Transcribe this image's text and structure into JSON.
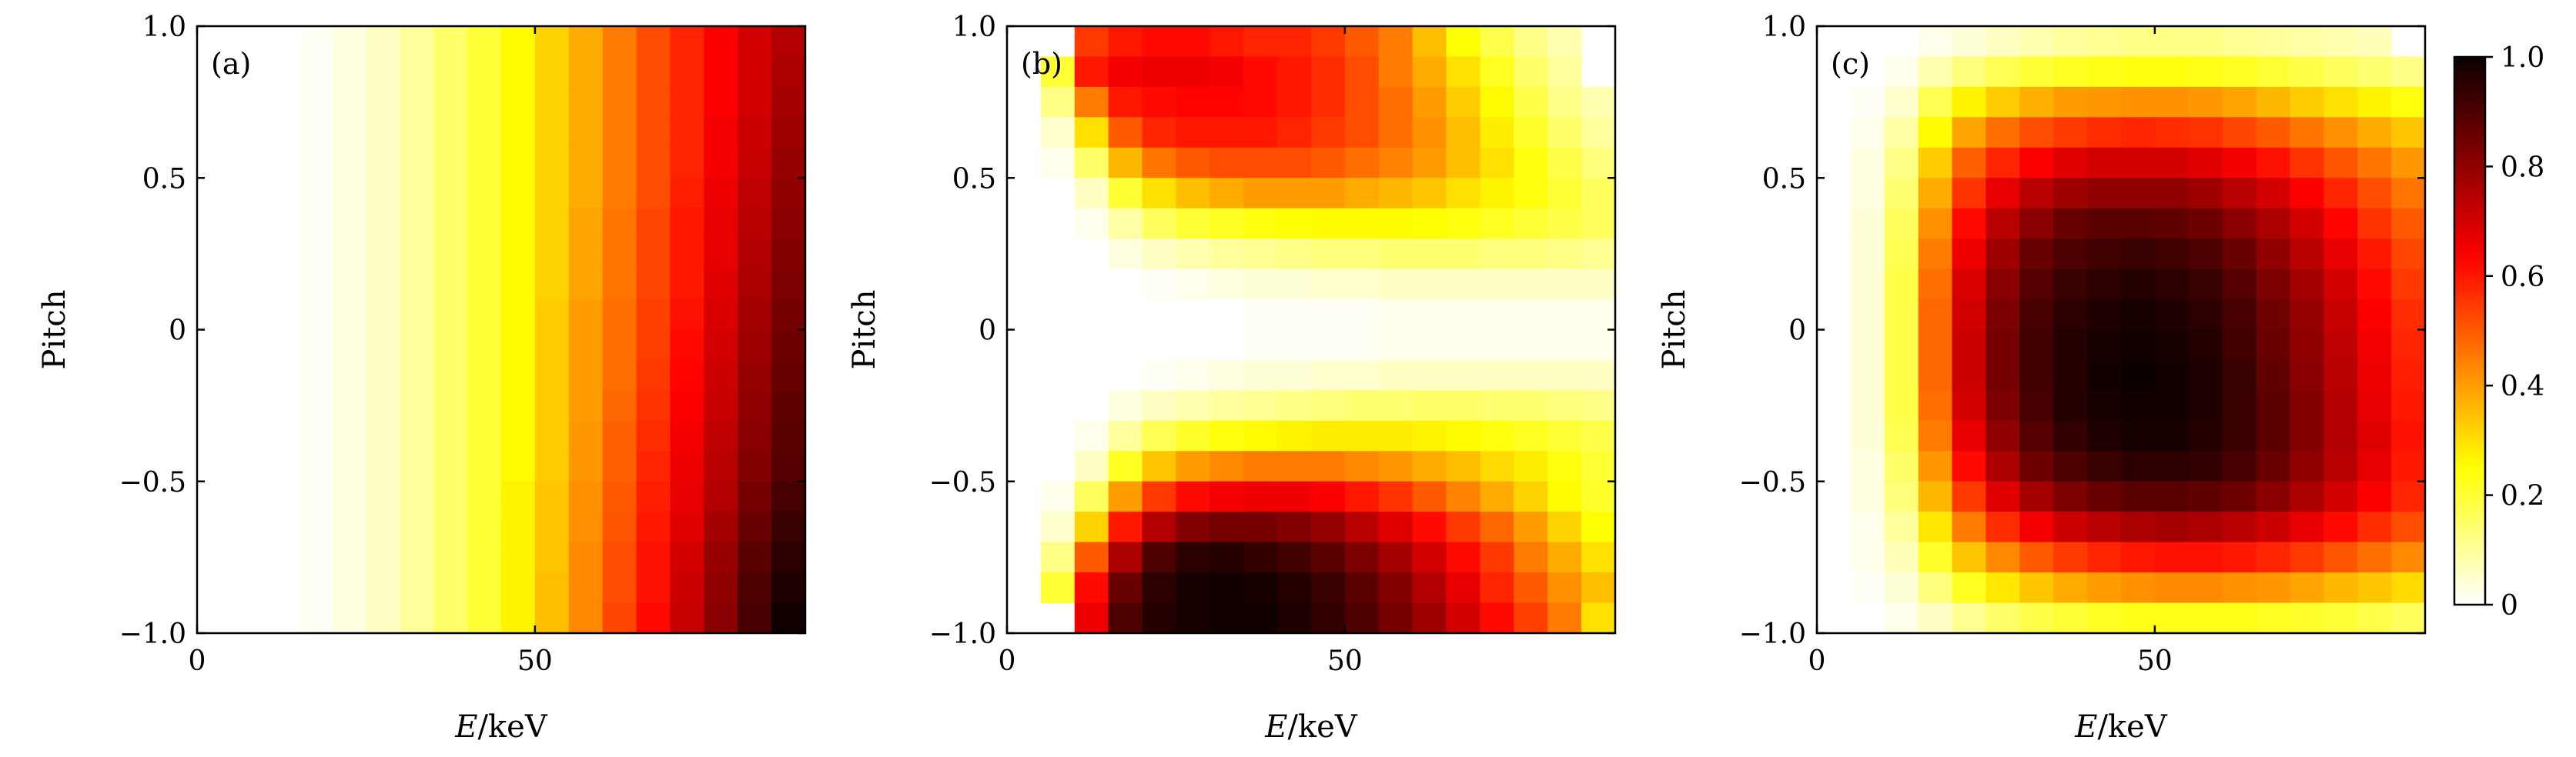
{
  "chart_data": [
    {
      "type": "heatmap",
      "panel_label": "(a)",
      "xlabel": "E/keV",
      "ylabel": "Pitch",
      "xlim": [
        0,
        90
      ],
      "ylim": [
        -1.0,
        1.0
      ],
      "xticks": [
        "0",
        "50"
      ],
      "yticks": [
        "1.0",
        "0.5",
        "0",
        "−0.5",
        "−1.0"
      ],
      "x_bin_width_keV": 5,
      "pitch_bins": 20,
      "description_of_values": "intensity rises with energy, independent of pitch",
      "rows": [
        [
          0,
          0,
          0,
          0.01,
          0.03,
          0.06,
          0.1,
          0.15,
          0.2,
          0.26,
          0.32,
          0.38,
          0.45,
          0.52,
          0.58,
          0.64,
          0.7,
          0.75
        ],
        [
          0,
          0,
          0,
          0.01,
          0.03,
          0.06,
          0.1,
          0.15,
          0.2,
          0.26,
          0.32,
          0.38,
          0.45,
          0.52,
          0.58,
          0.64,
          0.7,
          0.76
        ],
        [
          0,
          0,
          0,
          0.01,
          0.03,
          0.06,
          0.1,
          0.15,
          0.2,
          0.26,
          0.32,
          0.38,
          0.45,
          0.52,
          0.58,
          0.64,
          0.7,
          0.77
        ],
        [
          0,
          0,
          0,
          0.01,
          0.03,
          0.06,
          0.1,
          0.15,
          0.2,
          0.26,
          0.32,
          0.38,
          0.45,
          0.52,
          0.58,
          0.65,
          0.71,
          0.78
        ],
        [
          0,
          0,
          0,
          0.01,
          0.03,
          0.06,
          0.1,
          0.15,
          0.2,
          0.26,
          0.32,
          0.38,
          0.45,
          0.52,
          0.58,
          0.65,
          0.72,
          0.79
        ],
        [
          0,
          0,
          0,
          0.01,
          0.03,
          0.06,
          0.1,
          0.15,
          0.2,
          0.26,
          0.32,
          0.38,
          0.45,
          0.52,
          0.59,
          0.66,
          0.73,
          0.8
        ],
        [
          0,
          0,
          0,
          0.01,
          0.03,
          0.06,
          0.1,
          0.15,
          0.2,
          0.26,
          0.32,
          0.39,
          0.46,
          0.53,
          0.6,
          0.67,
          0.74,
          0.81
        ],
        [
          0,
          0,
          0,
          0.01,
          0.03,
          0.06,
          0.1,
          0.15,
          0.2,
          0.26,
          0.32,
          0.39,
          0.46,
          0.53,
          0.6,
          0.67,
          0.75,
          0.82
        ],
        [
          0,
          0,
          0,
          0.01,
          0.03,
          0.06,
          0.1,
          0.15,
          0.2,
          0.26,
          0.32,
          0.39,
          0.46,
          0.53,
          0.6,
          0.68,
          0.76,
          0.83
        ],
        [
          0,
          0,
          0,
          0.01,
          0.03,
          0.06,
          0.1,
          0.15,
          0.2,
          0.26,
          0.33,
          0.4,
          0.47,
          0.54,
          0.61,
          0.69,
          0.77,
          0.84
        ],
        [
          0,
          0,
          0,
          0.01,
          0.03,
          0.06,
          0.1,
          0.15,
          0.2,
          0.26,
          0.33,
          0.4,
          0.47,
          0.54,
          0.62,
          0.7,
          0.78,
          0.85
        ],
        [
          0,
          0,
          0,
          0.01,
          0.03,
          0.06,
          0.1,
          0.15,
          0.2,
          0.26,
          0.33,
          0.4,
          0.47,
          0.55,
          0.63,
          0.71,
          0.79,
          0.86
        ],
        [
          0,
          0,
          0,
          0.01,
          0.03,
          0.06,
          0.1,
          0.15,
          0.2,
          0.26,
          0.33,
          0.4,
          0.48,
          0.56,
          0.64,
          0.72,
          0.8,
          0.87
        ],
        [
          0,
          0,
          0,
          0.01,
          0.03,
          0.06,
          0.1,
          0.15,
          0.2,
          0.26,
          0.33,
          0.41,
          0.49,
          0.57,
          0.65,
          0.73,
          0.81,
          0.88
        ],
        [
          0,
          0,
          0,
          0.01,
          0.03,
          0.06,
          0.1,
          0.15,
          0.2,
          0.26,
          0.33,
          0.41,
          0.49,
          0.58,
          0.66,
          0.74,
          0.82,
          0.89
        ],
        [
          0,
          0,
          0,
          0.01,
          0.03,
          0.06,
          0.1,
          0.15,
          0.2,
          0.27,
          0.34,
          0.42,
          0.5,
          0.59,
          0.67,
          0.75,
          0.84,
          0.91
        ],
        [
          0,
          0,
          0,
          0.01,
          0.03,
          0.06,
          0.1,
          0.15,
          0.2,
          0.27,
          0.34,
          0.42,
          0.51,
          0.6,
          0.68,
          0.77,
          0.86,
          0.93
        ],
        [
          0,
          0,
          0,
          0.01,
          0.03,
          0.06,
          0.1,
          0.15,
          0.2,
          0.27,
          0.34,
          0.43,
          0.52,
          0.61,
          0.7,
          0.79,
          0.88,
          0.95
        ],
        [
          0,
          0,
          0,
          0.01,
          0.03,
          0.06,
          0.1,
          0.15,
          0.2,
          0.27,
          0.35,
          0.43,
          0.52,
          0.61,
          0.71,
          0.8,
          0.9,
          0.97
        ],
        [
          0,
          0,
          0,
          0.01,
          0.03,
          0.06,
          0.1,
          0.15,
          0.2,
          0.27,
          0.35,
          0.43,
          0.53,
          0.62,
          0.72,
          0.81,
          0.91,
          0.99
        ]
      ]
    },
    {
      "type": "heatmap",
      "panel_label": "(b)",
      "xlabel": "E/keV",
      "ylabel": "Pitch",
      "xlim": [
        0,
        90
      ],
      "ylim": [
        -1.0,
        1.0
      ],
      "xticks": [
        "0",
        "50"
      ],
      "yticks": [
        "1.0",
        "0.5",
        "0",
        "−0.5",
        "−1.0"
      ],
      "x_bin_width_keV": 5,
      "pitch_bins": 20,
      "description_of_values": "two lobes near pitch +1 and -1, empty near pitch 0",
      "rows": [
        [
          0,
          0,
          0.55,
          0.6,
          0.62,
          0.62,
          0.6,
          0.58,
          0.58,
          0.55,
          0.5,
          0.45,
          0.35,
          0.25,
          0.18,
          0.12,
          0.08,
          0
        ],
        [
          0,
          0.2,
          0.6,
          0.65,
          0.66,
          0.66,
          0.65,
          0.62,
          0.6,
          0.57,
          0.52,
          0.45,
          0.38,
          0.3,
          0.22,
          0.15,
          0.1,
          0
        ],
        [
          0,
          0.12,
          0.45,
          0.6,
          0.62,
          0.63,
          0.63,
          0.62,
          0.6,
          0.57,
          0.52,
          0.47,
          0.4,
          0.33,
          0.26,
          0.18,
          0.12,
          0.08
        ],
        [
          0,
          0.05,
          0.3,
          0.5,
          0.58,
          0.6,
          0.6,
          0.6,
          0.58,
          0.55,
          0.52,
          0.47,
          0.42,
          0.35,
          0.28,
          0.21,
          0.15,
          0.1
        ],
        [
          0,
          0.02,
          0.15,
          0.36,
          0.46,
          0.5,
          0.52,
          0.52,
          0.52,
          0.5,
          0.47,
          0.44,
          0.4,
          0.35,
          0.3,
          0.24,
          0.18,
          0.13
        ],
        [
          0,
          0,
          0.06,
          0.2,
          0.3,
          0.35,
          0.38,
          0.4,
          0.4,
          0.4,
          0.38,
          0.36,
          0.34,
          0.3,
          0.27,
          0.24,
          0.2,
          0.16
        ],
        [
          0,
          0,
          0.02,
          0.09,
          0.16,
          0.2,
          0.22,
          0.24,
          0.25,
          0.26,
          0.26,
          0.26,
          0.25,
          0.24,
          0.22,
          0.2,
          0.18,
          0.16
        ],
        [
          0,
          0,
          0,
          0.03,
          0.06,
          0.08,
          0.1,
          0.11,
          0.12,
          0.13,
          0.13,
          0.14,
          0.14,
          0.14,
          0.13,
          0.13,
          0.12,
          0.11
        ],
        [
          0,
          0,
          0,
          0,
          0.01,
          0.02,
          0.03,
          0.04,
          0.04,
          0.05,
          0.05,
          0.06,
          0.06,
          0.06,
          0.06,
          0.06,
          0.06,
          0.06
        ],
        [
          0,
          0,
          0,
          0,
          0,
          0,
          0,
          0.01,
          0.01,
          0.01,
          0.01,
          0.02,
          0.02,
          0.02,
          0.02,
          0.02,
          0.02,
          0.02
        ],
        [
          0,
          0,
          0,
          0,
          0,
          0,
          0,
          0.01,
          0.01,
          0.01,
          0.01,
          0.02,
          0.02,
          0.02,
          0.02,
          0.02,
          0.02,
          0.02
        ],
        [
          0,
          0,
          0,
          0,
          0.01,
          0.02,
          0.03,
          0.04,
          0.04,
          0.05,
          0.05,
          0.06,
          0.06,
          0.06,
          0.06,
          0.06,
          0.06,
          0.06
        ],
        [
          0,
          0,
          0,
          0.03,
          0.06,
          0.08,
          0.1,
          0.11,
          0.12,
          0.13,
          0.14,
          0.14,
          0.15,
          0.15,
          0.14,
          0.14,
          0.13,
          0.12
        ],
        [
          0,
          0,
          0.02,
          0.1,
          0.17,
          0.21,
          0.24,
          0.26,
          0.27,
          0.28,
          0.28,
          0.28,
          0.27,
          0.26,
          0.24,
          0.22,
          0.2,
          0.18
        ],
        [
          0,
          0,
          0.06,
          0.22,
          0.34,
          0.4,
          0.43,
          0.45,
          0.45,
          0.45,
          0.43,
          0.41,
          0.38,
          0.35,
          0.31,
          0.28,
          0.24,
          0.2
        ],
        [
          0,
          0.02,
          0.16,
          0.4,
          0.55,
          0.62,
          0.65,
          0.66,
          0.66,
          0.64,
          0.6,
          0.56,
          0.5,
          0.44,
          0.38,
          0.32,
          0.26,
          0.21
        ],
        [
          0,
          0.05,
          0.32,
          0.6,
          0.75,
          0.82,
          0.84,
          0.84,
          0.82,
          0.79,
          0.74,
          0.68,
          0.62,
          0.55,
          0.48,
          0.4,
          0.32,
          0.25
        ],
        [
          0,
          0.12,
          0.5,
          0.76,
          0.9,
          0.95,
          0.96,
          0.94,
          0.92,
          0.88,
          0.83,
          0.77,
          0.7,
          0.62,
          0.55,
          0.45,
          0.38,
          0.3
        ],
        [
          0,
          0.2,
          0.62,
          0.86,
          0.95,
          0.98,
          0.99,
          0.98,
          0.96,
          0.93,
          0.88,
          0.82,
          0.75,
          0.67,
          0.58,
          0.5,
          0.42,
          0.35
        ],
        [
          0,
          0,
          0.66,
          0.9,
          0.96,
          0.98,
          0.99,
          0.99,
          0.97,
          0.94,
          0.9,
          0.84,
          0.78,
          0.7,
          0.62,
          0.54,
          0.45,
          0.3
        ]
      ]
    },
    {
      "type": "heatmap",
      "panel_label": "(c)",
      "xlabel": "E/keV",
      "ylabel": "Pitch",
      "xlim": [
        0,
        90
      ],
      "ylim": [
        -1.0,
        1.0
      ],
      "xticks": [
        "0",
        "50"
      ],
      "yticks": [
        "1.0",
        "0.5",
        "0",
        "−0.5",
        "−1.0"
      ],
      "x_bin_width_keV": 5,
      "pitch_bins": 20,
      "description_of_values": "single broad maximum centred near E=50 keV, pitch -0.3",
      "rows": [
        [
          0,
          0,
          0,
          0.02,
          0.04,
          0.06,
          0.08,
          0.1,
          0.11,
          0.12,
          0.12,
          0.12,
          0.11,
          0.1,
          0.09,
          0.08,
          0.07,
          0
        ],
        [
          0,
          0,
          0.02,
          0.08,
          0.13,
          0.17,
          0.2,
          0.22,
          0.23,
          0.24,
          0.24,
          0.23,
          0.22,
          0.2,
          0.18,
          0.16,
          0.14,
          0.12
        ],
        [
          0,
          0.01,
          0.05,
          0.17,
          0.27,
          0.33,
          0.37,
          0.4,
          0.41,
          0.42,
          0.42,
          0.41,
          0.39,
          0.36,
          0.33,
          0.3,
          0.27,
          0.24
        ],
        [
          0,
          0.02,
          0.09,
          0.26,
          0.39,
          0.47,
          0.52,
          0.55,
          0.57,
          0.58,
          0.57,
          0.56,
          0.53,
          0.5,
          0.46,
          0.42,
          0.38,
          0.34
        ],
        [
          0,
          0.03,
          0.12,
          0.33,
          0.49,
          0.58,
          0.64,
          0.68,
          0.7,
          0.7,
          0.7,
          0.68,
          0.65,
          0.61,
          0.56,
          0.51,
          0.46,
          0.41
        ],
        [
          0,
          0.03,
          0.14,
          0.38,
          0.56,
          0.67,
          0.74,
          0.78,
          0.8,
          0.8,
          0.8,
          0.78,
          0.74,
          0.7,
          0.64,
          0.58,
          0.52,
          0.46
        ],
        [
          0,
          0.04,
          0.16,
          0.42,
          0.62,
          0.74,
          0.81,
          0.86,
          0.88,
          0.88,
          0.87,
          0.85,
          0.81,
          0.76,
          0.7,
          0.63,
          0.56,
          0.5
        ],
        [
          0,
          0.04,
          0.17,
          0.45,
          0.66,
          0.78,
          0.86,
          0.9,
          0.92,
          0.93,
          0.92,
          0.9,
          0.86,
          0.8,
          0.74,
          0.67,
          0.6,
          0.53
        ],
        [
          0,
          0.04,
          0.18,
          0.47,
          0.69,
          0.81,
          0.89,
          0.93,
          0.95,
          0.96,
          0.95,
          0.93,
          0.89,
          0.83,
          0.77,
          0.7,
          0.62,
          0.55
        ],
        [
          0,
          0.04,
          0.18,
          0.48,
          0.7,
          0.83,
          0.91,
          0.95,
          0.97,
          0.98,
          0.97,
          0.95,
          0.91,
          0.85,
          0.79,
          0.72,
          0.64,
          0.57
        ],
        [
          0,
          0.04,
          0.18,
          0.48,
          0.71,
          0.84,
          0.92,
          0.96,
          0.98,
          0.99,
          0.98,
          0.96,
          0.92,
          0.86,
          0.8,
          0.73,
          0.65,
          0.58
        ],
        [
          0,
          0.04,
          0.18,
          0.48,
          0.71,
          0.84,
          0.92,
          0.96,
          0.99,
          1.0,
          0.99,
          0.97,
          0.93,
          0.87,
          0.81,
          0.74,
          0.66,
          0.59
        ],
        [
          0,
          0.04,
          0.18,
          0.47,
          0.7,
          0.83,
          0.91,
          0.96,
          0.98,
          0.99,
          0.99,
          0.97,
          0.93,
          0.88,
          0.82,
          0.75,
          0.67,
          0.6
        ],
        [
          0,
          0.04,
          0.17,
          0.45,
          0.67,
          0.8,
          0.89,
          0.94,
          0.97,
          0.98,
          0.98,
          0.96,
          0.93,
          0.88,
          0.82,
          0.75,
          0.68,
          0.61
        ],
        [
          0,
          0.03,
          0.15,
          0.41,
          0.62,
          0.76,
          0.85,
          0.9,
          0.93,
          0.95,
          0.95,
          0.94,
          0.91,
          0.86,
          0.8,
          0.74,
          0.67,
          0.6
        ],
        [
          0,
          0.03,
          0.13,
          0.36,
          0.55,
          0.68,
          0.77,
          0.83,
          0.86,
          0.88,
          0.88,
          0.87,
          0.85,
          0.81,
          0.76,
          0.7,
          0.64,
          0.58
        ],
        [
          0,
          0.02,
          0.1,
          0.29,
          0.45,
          0.57,
          0.65,
          0.71,
          0.74,
          0.76,
          0.77,
          0.76,
          0.74,
          0.71,
          0.67,
          0.62,
          0.57,
          0.52
        ],
        [
          0,
          0.02,
          0.07,
          0.21,
          0.34,
          0.43,
          0.5,
          0.55,
          0.58,
          0.6,
          0.61,
          0.61,
          0.6,
          0.58,
          0.55,
          0.51,
          0.47,
          0.43
        ],
        [
          0,
          0.01,
          0.04,
          0.13,
          0.22,
          0.29,
          0.34,
          0.38,
          0.4,
          0.42,
          0.43,
          0.43,
          0.42,
          0.41,
          0.39,
          0.36,
          0.34,
          0.31
        ],
        [
          0,
          0,
          0.02,
          0.06,
          0.11,
          0.15,
          0.18,
          0.2,
          0.22,
          0.23,
          0.23,
          0.23,
          0.23,
          0.22,
          0.21,
          0.2,
          0.18,
          0.16
        ]
      ]
    }
  ],
  "colorbar": {
    "colormap": "hot_r",
    "range": [
      0,
      1.0
    ],
    "ticks": [
      "0",
      "0.2",
      "0.4",
      "0.6",
      "0.8",
      "1.0"
    ]
  },
  "colors": {
    "background": "#ffffff",
    "axis": "#000000"
  }
}
